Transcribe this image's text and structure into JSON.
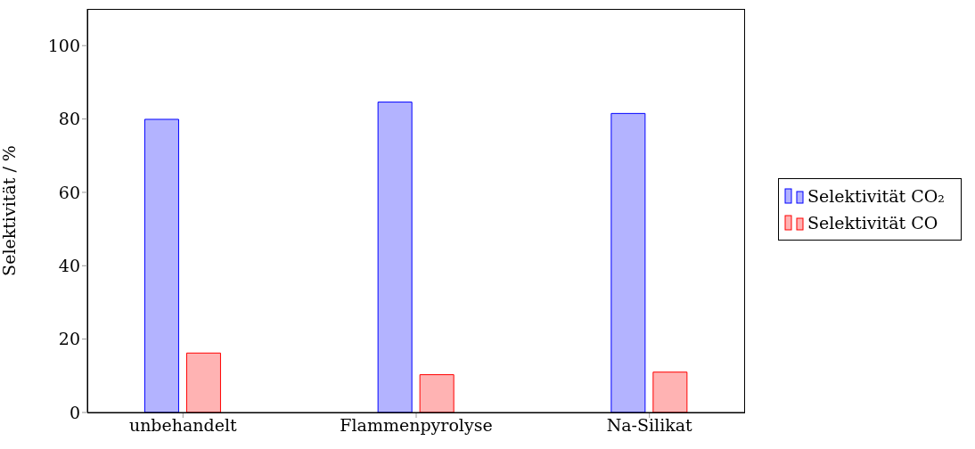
{
  "chart_data": {
    "type": "bar",
    "ylabel": "Selektivität / %",
    "categories": [
      "unbehandelt",
      "Flammenpyrolyse",
      "Na-Silikat"
    ],
    "series": [
      {
        "name": "Selektivität CO₂",
        "color": "#0000ff",
        "values": [
          79.9,
          84.6,
          81.5
        ]
      },
      {
        "name": "Selektivität CO",
        "color": "#ff0000",
        "values": [
          16.2,
          10.3,
          11
        ]
      }
    ],
    "ylim": [
      0,
      110
    ],
    "yticks": [
      0,
      20,
      40,
      60,
      80,
      100
    ],
    "legend": "right"
  }
}
